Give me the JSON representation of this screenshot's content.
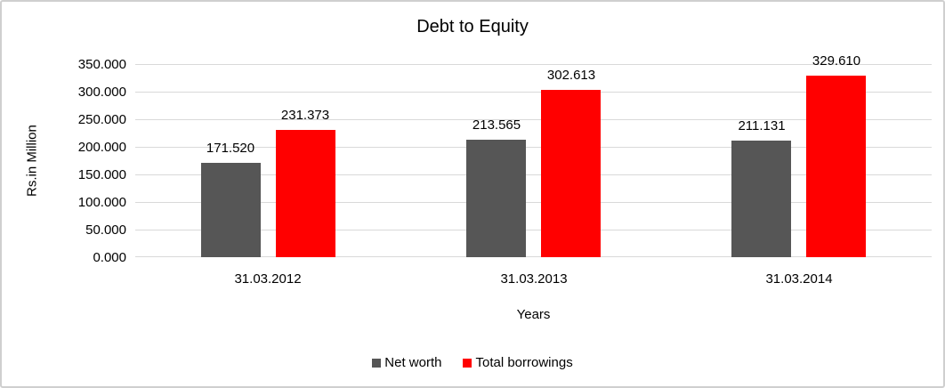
{
  "chart_data": {
    "type": "bar",
    "title": "Debt to Equity",
    "xlabel": "Years",
    "ylabel": "Rs.in Million",
    "categories": [
      "31.03.2012",
      "31.03.2013",
      "31.03.2014"
    ],
    "series": [
      {
        "name": "Net worth",
        "color": "#565656",
        "values": [
          171.52,
          213.565,
          211.131
        ],
        "value_labels": [
          "171.520",
          "213.565",
          "211.131"
        ]
      },
      {
        "name": "Total borrowings",
        "color": "#ff0000",
        "values": [
          231.373,
          302.613,
          329.61
        ],
        "value_labels": [
          "231.373",
          "302.613",
          "329.610"
        ]
      }
    ],
    "ylim": [
      0,
      350
    ],
    "ytick_step": 50,
    "ytick_labels": [
      "350.000",
      "300.000",
      "250.000",
      "200.000",
      "150.000",
      "100.000",
      "50.000",
      "0.000"
    ],
    "grid": "horizontal",
    "gridline_color": "#d9d9d9",
    "legend_position": "bottom"
  }
}
